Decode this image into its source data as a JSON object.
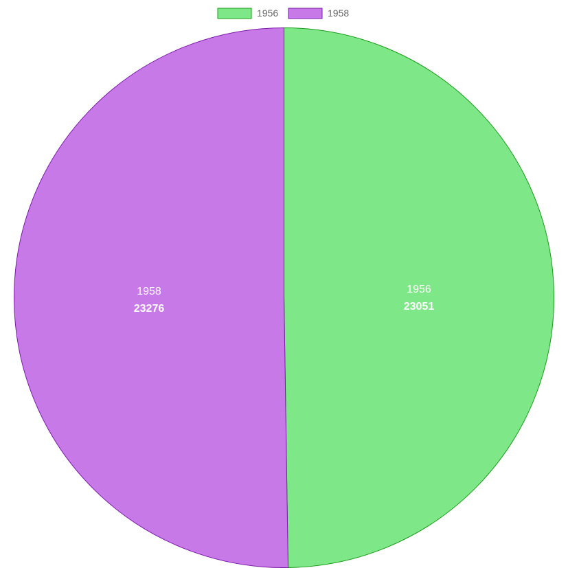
{
  "chart_data": {
    "type": "pie",
    "categories": [
      "1956",
      "1958"
    ],
    "values": [
      23051,
      23276
    ],
    "colors": {
      "fills": [
        "#7ee787",
        "#c879e8"
      ],
      "borders": [
        "#1a9a1a",
        "#7a1aa6"
      ]
    },
    "legend": {
      "position": "top",
      "items": [
        {
          "label": "1956"
        },
        {
          "label": "1958"
        }
      ]
    }
  }
}
